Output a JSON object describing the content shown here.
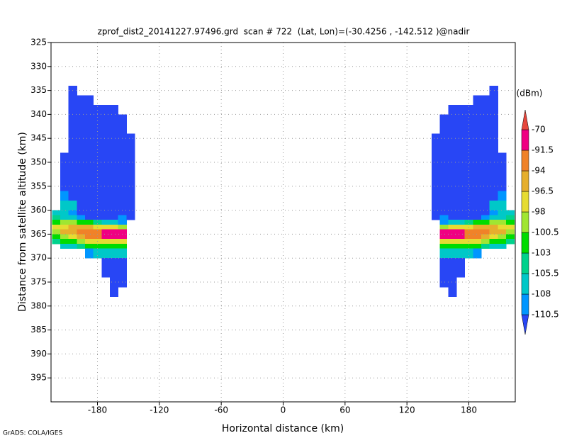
{
  "chart_data": {
    "type": "heatmap",
    "title": "zprof_dist2_20141227.97496.grd  scan # 722  (Lat, Lon)=(-30.4256 , -142.512 )@nadir",
    "x_label": "Horizontal distance (km)",
    "y_label": "Distance from satellite altitude (km)",
    "footer": "GrADS: COLA/IGES",
    "colorbar_label": "(dBm)",
    "xlim": [
      -225,
      225
    ],
    "xticks": [
      -180,
      -120,
      -60,
      0,
      60,
      120,
      180
    ],
    "ylim": [
      400,
      325
    ],
    "yticks": [
      325,
      330,
      335,
      340,
      345,
      350,
      355,
      360,
      365,
      370,
      375,
      380,
      385,
      390,
      395
    ],
    "grid": true,
    "levels": [
      -110.5,
      -108,
      -105.5,
      -103,
      -100.5,
      -98,
      -96.5,
      -94,
      -91.5,
      -70
    ],
    "colors": [
      "#2846f5",
      "#0096ff",
      "#00c8c8",
      "#00d28c",
      "#00dc00",
      "#a0e632",
      "#e6dc32",
      "#e6af2d",
      "#f08228",
      "#f00082",
      "#e6463c"
    ],
    "y_bins": [
      334,
      336,
      338,
      340,
      342,
      344,
      346,
      348,
      350,
      352,
      354,
      356,
      358,
      360,
      361,
      362,
      363,
      364,
      365,
      366,
      367,
      368,
      370,
      372,
      374,
      376,
      378
    ],
    "swaths": [
      {
        "x_bins": [
          -224,
          -216,
          -208,
          -200,
          -192,
          -184,
          -176,
          -168,
          -160,
          -152,
          -144
        ],
        "values": [
          [
            null,
            null,
            -111,
            null,
            null,
            null,
            null,
            null,
            null,
            null
          ],
          [
            null,
            null,
            -111,
            -111,
            -111,
            null,
            null,
            null,
            null,
            null
          ],
          [
            null,
            null,
            -111,
            -111,
            -111,
            -111,
            -111,
            -111,
            null,
            null
          ],
          [
            null,
            null,
            -111,
            -111,
            -111,
            -111,
            -111,
            -111,
            -111,
            null
          ],
          [
            null,
            null,
            -111,
            -111,
            -111,
            -111,
            -111,
            -111,
            -111,
            null
          ],
          [
            null,
            null,
            -111,
            -111,
            -111,
            -111,
            -111,
            -111,
            -111,
            -111
          ],
          [
            null,
            null,
            -111,
            -111,
            -111,
            -111,
            -111,
            -111,
            -111,
            -111
          ],
          [
            null,
            -111,
            -111,
            -111,
            -111,
            -111,
            -111,
            -111,
            -111,
            -111
          ],
          [
            null,
            -111,
            -111,
            -111,
            -111,
            -111,
            -111,
            -111,
            -111,
            -111
          ],
          [
            null,
            -111,
            -111,
            -111,
            -111,
            -111,
            -111,
            -111,
            -111,
            -111
          ],
          [
            null,
            -111,
            -111,
            -111,
            -111,
            -111,
            -111,
            -111,
            -111,
            -111
          ],
          [
            null,
            -109,
            -111,
            -111,
            -111,
            -111,
            -111,
            -111,
            -111,
            -111
          ],
          [
            null,
            -107,
            -107,
            -111,
            -111,
            -111,
            -111,
            -111,
            -111,
            -111
          ],
          [
            -107,
            -107,
            -109,
            -111,
            -111,
            -111,
            -111,
            -111,
            -111,
            -111
          ],
          [
            -104,
            -106,
            -107,
            -109,
            -111,
            -111,
            -111,
            -111,
            -109,
            -111
          ],
          [
            -102,
            -99,
            -99,
            -101,
            -102,
            -104,
            -106,
            -107,
            -109,
            null
          ],
          [
            -97,
            -97,
            -95,
            -95,
            -96,
            -97,
            -97,
            -98,
            -99,
            null
          ],
          [
            -99,
            -96,
            -95,
            -93,
            -93,
            -92,
            -90,
            -90,
            -89,
            null
          ],
          [
            -102,
            -99,
            -97,
            -95,
            -94,
            -93,
            -91,
            -90,
            -91,
            null
          ],
          [
            -105,
            -102,
            -101,
            -99,
            -98,
            -97,
            -97,
            -97,
            -98,
            null
          ],
          [
            null,
            -107,
            -106,
            -104,
            -103,
            -102,
            -102,
            -101,
            -103,
            null
          ],
          [
            null,
            null,
            null,
            null,
            -109,
            -108,
            -107,
            -107,
            -108,
            null
          ],
          [
            null,
            null,
            null,
            null,
            null,
            null,
            -111,
            -111,
            -111,
            null
          ],
          [
            null,
            null,
            null,
            null,
            null,
            null,
            -111,
            -111,
            -111,
            null
          ],
          [
            null,
            null,
            null,
            null,
            null,
            null,
            null,
            -111,
            -111,
            null
          ],
          [
            null,
            null,
            null,
            null,
            null,
            null,
            null,
            -111,
            null,
            null
          ]
        ]
      },
      {
        "x_bins": [
          144,
          152,
          160,
          168,
          176,
          184,
          192,
          200,
          208,
          216,
          224
        ],
        "values": [
          [
            null,
            null,
            null,
            null,
            null,
            null,
            null,
            -111,
            null,
            null
          ],
          [
            null,
            null,
            null,
            null,
            null,
            -111,
            -111,
            -111,
            null,
            null
          ],
          [
            null,
            null,
            -111,
            -111,
            -111,
            -111,
            -111,
            -111,
            null,
            null
          ],
          [
            null,
            -111,
            -111,
            -111,
            -111,
            -111,
            -111,
            -111,
            null,
            null
          ],
          [
            null,
            -111,
            -111,
            -111,
            -111,
            -111,
            -111,
            -111,
            null,
            null
          ],
          [
            -111,
            -111,
            -111,
            -111,
            -111,
            -111,
            -111,
            -111,
            null,
            null
          ],
          [
            -111,
            -111,
            -111,
            -111,
            -111,
            -111,
            -111,
            -111,
            null,
            null
          ],
          [
            -111,
            -111,
            -111,
            -111,
            -111,
            -111,
            -111,
            -111,
            -111,
            null
          ],
          [
            -111,
            -111,
            -111,
            -111,
            -111,
            -111,
            -111,
            -111,
            -111,
            null
          ],
          [
            -111,
            -111,
            -111,
            -111,
            -111,
            -111,
            -111,
            -111,
            -111,
            null
          ],
          [
            -111,
            -111,
            -111,
            -111,
            -111,
            -111,
            -111,
            -111,
            -111,
            null
          ],
          [
            -111,
            -111,
            -111,
            -111,
            -111,
            -111,
            -111,
            -111,
            -109,
            null
          ],
          [
            -111,
            -111,
            -111,
            -111,
            -111,
            -111,
            -111,
            -107,
            -107,
            null
          ],
          [
            -111,
            -111,
            -111,
            -111,
            -111,
            -111,
            -111,
            -109,
            -107,
            -107
          ],
          [
            -111,
            -109,
            -111,
            -111,
            -111,
            -111,
            -109,
            -107,
            -106,
            -104
          ],
          [
            null,
            -109,
            -107,
            -106,
            -104,
            -102,
            -101,
            -99,
            -99,
            -102
          ],
          [
            null,
            -99,
            -98,
            -97,
            -97,
            -96,
            -95,
            -95,
            -97,
            -97
          ],
          [
            null,
            -89,
            -90,
            -90,
            -92,
            -93,
            -93,
            -95,
            -96,
            -99
          ],
          [
            null,
            -91,
            -90,
            -91,
            -93,
            -94,
            -95,
            -97,
            -99,
            -102
          ],
          [
            null,
            -98,
            -97,
            -97,
            -97,
            -98,
            -99,
            -101,
            -102,
            -105
          ],
          [
            null,
            -103,
            -101,
            -102,
            -102,
            -103,
            -104,
            -106,
            -107,
            null
          ],
          [
            null,
            -108,
            -107,
            -107,
            -108,
            -109,
            null,
            null,
            null,
            null
          ],
          [
            null,
            -111,
            -111,
            -111,
            null,
            null,
            null,
            null,
            null,
            null
          ],
          [
            null,
            -111,
            -111,
            -111,
            null,
            null,
            null,
            null,
            null,
            null
          ],
          [
            null,
            -111,
            -111,
            null,
            null,
            null,
            null,
            null,
            null,
            null
          ],
          [
            null,
            null,
            -111,
            null,
            null,
            null,
            null,
            null,
            null,
            null
          ]
        ]
      }
    ]
  }
}
